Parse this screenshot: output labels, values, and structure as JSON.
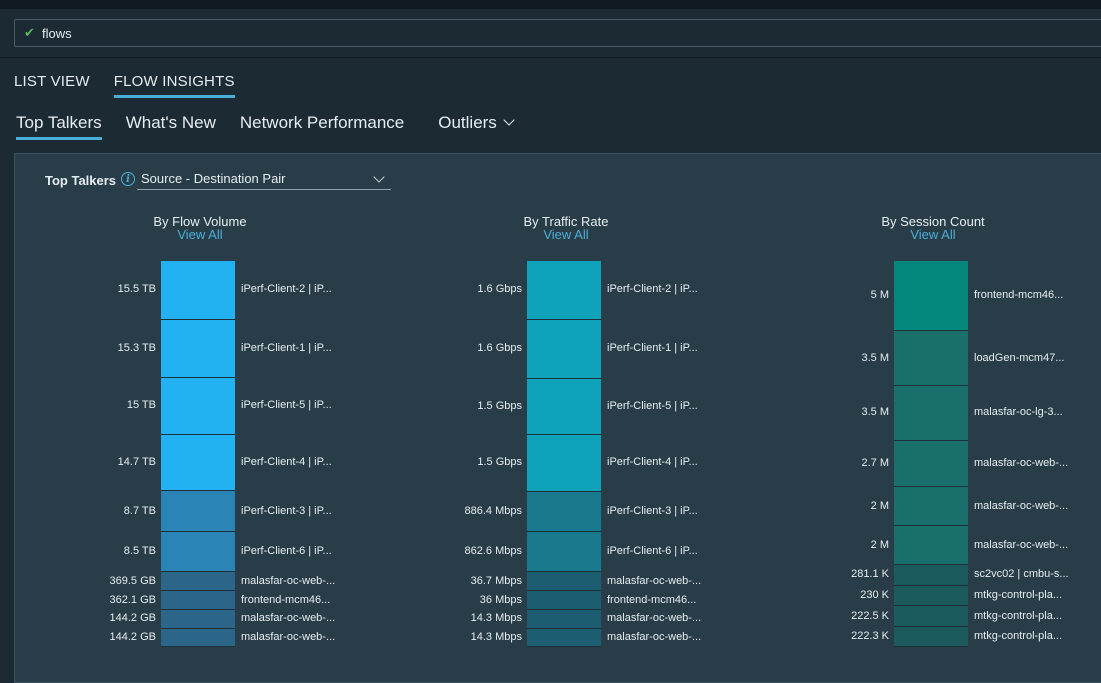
{
  "search": {
    "value": "flows",
    "icon": "check-icon"
  },
  "view_tabs": [
    {
      "label": "LIST VIEW",
      "active": false
    },
    {
      "label": "FLOW INSIGHTS",
      "active": true
    }
  ],
  "sub_tabs": [
    {
      "label": "Top Talkers",
      "active": true
    },
    {
      "label": "What's New",
      "active": false
    },
    {
      "label": "Network Performance",
      "active": false
    },
    {
      "label": "Outliers",
      "active": false
    }
  ],
  "panel": {
    "label": "Top Talkers",
    "dropdown_value": "Source - Destination Pair"
  },
  "colors": {
    "accent": "#49afd9",
    "volume_top": "#22b2f2",
    "volume_mid": "#2b84b6",
    "volume_low": "#2b6689",
    "rate_top": "#10a2ba",
    "rate_mid": "#197a8d",
    "rate_low": "#1c5e6f",
    "session_top": "#06877b",
    "session_mid": "#1a6e6b",
    "session_low": "#1c5a5e"
  },
  "chart_data": [
    {
      "type": "bar",
      "title": "By Flow Volume",
      "link": "View All",
      "items": [
        {
          "value": "15.5 TB",
          "label": "iPerf-Client-2 | iP...",
          "amount": 15.5,
          "tier": "top"
        },
        {
          "value": "15.3 TB",
          "label": "iPerf-Client-1 | iP...",
          "amount": 15.3,
          "tier": "top"
        },
        {
          "value": "15 TB",
          "label": "iPerf-Client-5 | iP...",
          "amount": 15.0,
          "tier": "top"
        },
        {
          "value": "14.7 TB",
          "label": "iPerf-Client-4 | iP...",
          "amount": 14.7,
          "tier": "top"
        },
        {
          "value": "8.7 TB",
          "label": "iPerf-Client-3 | iP...",
          "amount": 8.7,
          "tier": "mid"
        },
        {
          "value": "8.5 TB",
          "label": "iPerf-Client-6 | iP...",
          "amount": 8.5,
          "tier": "mid"
        },
        {
          "value": "369.5 GB",
          "label": "malasfar-oc-web-...",
          "amount": 0.3695,
          "tier": "low"
        },
        {
          "value": "362.1 GB",
          "label": "frontend-mcm46...",
          "amount": 0.3621,
          "tier": "low"
        },
        {
          "value": "144.2 GB",
          "label": "malasfar-oc-web-...",
          "amount": 0.1442,
          "tier": "low"
        },
        {
          "value": "144.2 GB",
          "label": "malasfar-oc-web-...",
          "amount": 0.1442,
          "tier": "low"
        }
      ]
    },
    {
      "type": "bar",
      "title": "By Traffic Rate",
      "link": "View All",
      "items": [
        {
          "value": "1.6 Gbps",
          "label": "iPerf-Client-2 | iP...",
          "amount": 1.6,
          "tier": "top"
        },
        {
          "value": "1.6 Gbps",
          "label": "iPerf-Client-1 | iP...",
          "amount": 1.6,
          "tier": "top"
        },
        {
          "value": "1.5 Gbps",
          "label": "iPerf-Client-5 | iP...",
          "amount": 1.5,
          "tier": "top"
        },
        {
          "value": "1.5 Gbps",
          "label": "iPerf-Client-4 | iP...",
          "amount": 1.5,
          "tier": "top"
        },
        {
          "value": "886.4 Mbps",
          "label": "iPerf-Client-3 | iP...",
          "amount": 0.8864,
          "tier": "mid"
        },
        {
          "value": "862.6 Mbps",
          "label": "iPerf-Client-6 | iP...",
          "amount": 0.8626,
          "tier": "mid"
        },
        {
          "value": "36.7 Mbps",
          "label": "malasfar-oc-web-...",
          "amount": 0.0367,
          "tier": "low"
        },
        {
          "value": "36 Mbps",
          "label": "frontend-mcm46...",
          "amount": 0.036,
          "tier": "low"
        },
        {
          "value": "14.3 Mbps",
          "label": "malasfar-oc-web-...",
          "amount": 0.0143,
          "tier": "low"
        },
        {
          "value": "14.3 Mbps",
          "label": "malasfar-oc-web-...",
          "amount": 0.0143,
          "tier": "low"
        }
      ]
    },
    {
      "type": "bar",
      "title": "By Session Count",
      "link": "View All",
      "items": [
        {
          "value": "5 M",
          "label": "frontend-mcm46...",
          "amount": 5000000,
          "tier": "top"
        },
        {
          "value": "3.5 M",
          "label": "loadGen-mcm47...",
          "amount": 3500000,
          "tier": "mid"
        },
        {
          "value": "3.5 M",
          "label": "malasfar-oc-lg-3...",
          "amount": 3500000,
          "tier": "mid"
        },
        {
          "value": "2.7 M",
          "label": "malasfar-oc-web-...",
          "amount": 2700000,
          "tier": "mid"
        },
        {
          "value": "2 M",
          "label": "malasfar-oc-web-...",
          "amount": 2000000,
          "tier": "mid"
        },
        {
          "value": "2 M",
          "label": "malasfar-oc-web-...",
          "amount": 2000000,
          "tier": "mid"
        },
        {
          "value": "281.1 K",
          "label": "sc2vc02 | cmbu-s...",
          "amount": 281100,
          "tier": "low"
        },
        {
          "value": "230 K",
          "label": "mtkg-control-pla...",
          "amount": 230000,
          "tier": "low"
        },
        {
          "value": "222.5 K",
          "label": "mtkg-control-pla...",
          "amount": 222500,
          "tier": "low"
        },
        {
          "value": "222.3 K",
          "label": "mtkg-control-pla...",
          "amount": 222300,
          "tier": "low"
        }
      ]
    }
  ]
}
